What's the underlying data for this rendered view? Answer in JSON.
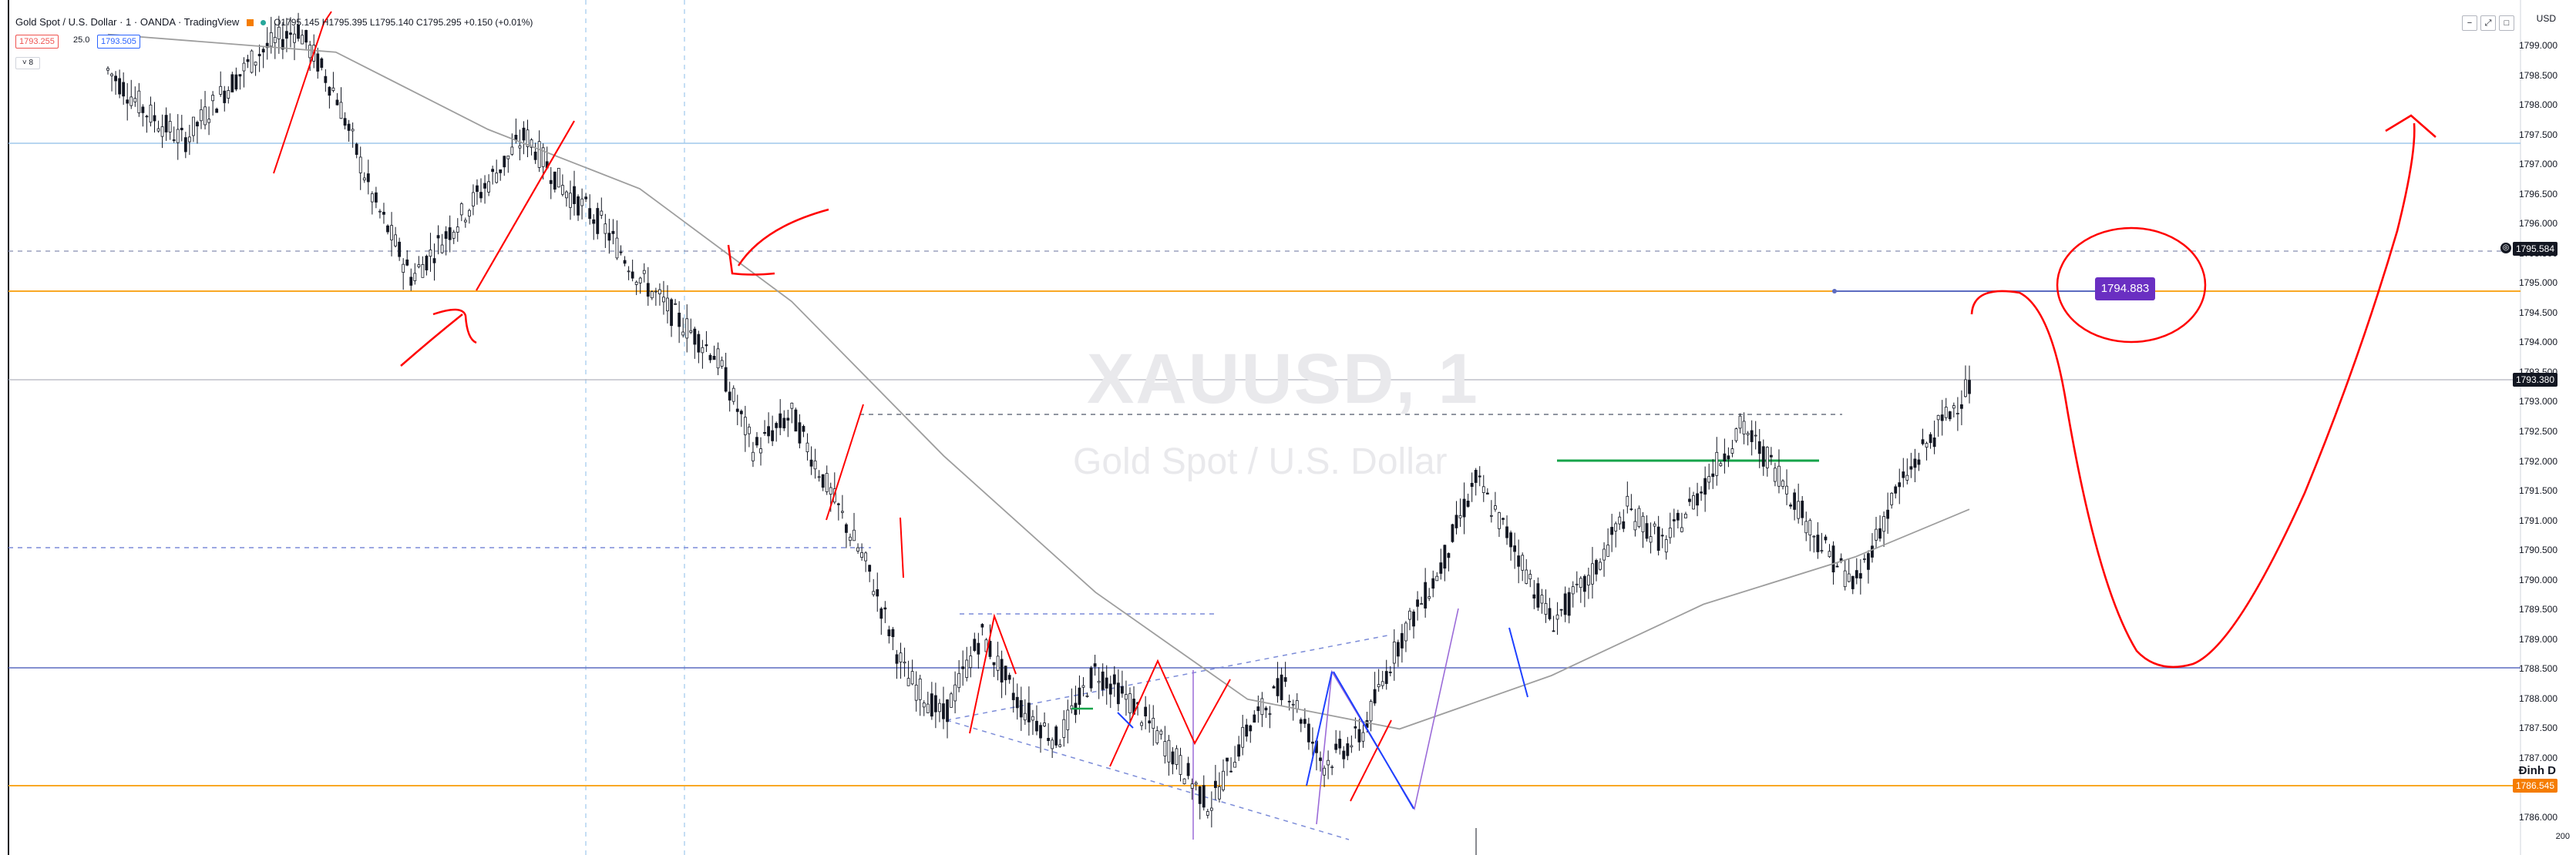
{
  "window": {
    "title": "Gold Spot / U.S. Dollar · 1 · OANDA · TradingView",
    "ohlc": "O1795.145 H1795.395 L1795.140 C1795.295 +0.150 (+0.01%)",
    "sell_price": "1793.255",
    "spread": "25.0",
    "buy_price": "1793.505",
    "indicator_chip": "8",
    "buttons": [
      "−",
      "⤢",
      "□"
    ]
  },
  "watermark": {
    "symbol": "XAUUSD, 1",
    "description": "Gold Spot / U.S. Dollar"
  },
  "price_axis": {
    "currency": "USD",
    "ticks": [
      "1799.000",
      "1798.500",
      "1798.000",
      "1797.500",
      "1797.000",
      "1796.500",
      "1796.000",
      "1795.500",
      "1795.000",
      "1794.500",
      "1794.000",
      "1793.500",
      "1793.000",
      "1792.500",
      "1792.000",
      "1791.500",
      "1791.000",
      "1790.500",
      "1790.000",
      "1789.500",
      "1789.000",
      "1788.500",
      "1788.000",
      "1787.500",
      "1787.000",
      "1786.500",
      "1786.000"
    ],
    "tags": [
      {
        "price": 1795.584,
        "label": "1795.584",
        "color": "#131722"
      },
      {
        "price": 1793.38,
        "label": "1793.380",
        "color": "#131722"
      },
      {
        "price": 1786.545,
        "label": "1786.545",
        "color": "#f57c00"
      }
    ],
    "bottom_label": "200"
  },
  "annotations": {
    "purple_price_label": "1794.883",
    "dinh_label": "Đinh D",
    "target_icon": "crosshair-icon"
  },
  "colors": {
    "up": "#131722",
    "ma": "#9e9e9e",
    "horizontal_orange": "#f9a825",
    "horizontal_blue": "#9fc9ec",
    "horizontal_purple": "#5c6bc0",
    "drawing_red": "#ff0000",
    "pattern_blue": "#1e40ff",
    "pattern_green": "#16a34a",
    "dashed_blue": "#7c8cd8",
    "purple_label_bg": "#6a2fc2"
  },
  "chart_data": {
    "type": "line",
    "title": "XAUUSD, 1",
    "xlabel": "",
    "ylabel": "",
    "ylim": [
      1786.0,
      1799.0
    ],
    "price_path": [
      [
        0,
        1798.6
      ],
      [
        1,
        1797.9
      ],
      [
        2,
        1797.4
      ],
      [
        3,
        1798.2
      ],
      [
        4,
        1798.9
      ],
      [
        5,
        1799.3
      ],
      [
        6,
        1798.2
      ],
      [
        7,
        1796.4
      ],
      [
        8,
        1795.1
      ],
      [
        9,
        1795.9
      ],
      [
        10,
        1796.7
      ],
      [
        11,
        1797.5
      ],
      [
        12,
        1796.6
      ],
      [
        13,
        1796.0
      ],
      [
        14,
        1795.1
      ],
      [
        15,
        1794.4
      ],
      [
        16,
        1793.8
      ],
      [
        17,
        1792.2
      ],
      [
        18,
        1792.8
      ],
      [
        19,
        1791.5
      ],
      [
        20,
        1790.2
      ],
      [
        21,
        1788.4
      ],
      [
        22,
        1787.7
      ],
      [
        23,
        1789.1
      ],
      [
        24,
        1787.9
      ],
      [
        25,
        1787.3
      ],
      [
        26,
        1788.5
      ],
      [
        27,
        1787.9
      ],
      [
        28,
        1787.1
      ],
      [
        29,
        1786.2
      ],
      [
        30,
        1787.5
      ],
      [
        31,
        1788.3
      ],
      [
        32,
        1786.9
      ],
      [
        33,
        1787.4
      ],
      [
        34,
        1789.0
      ],
      [
        35,
        1790.1
      ],
      [
        36,
        1791.7
      ],
      [
        37,
        1790.6
      ],
      [
        38,
        1789.3
      ],
      [
        39,
        1790.0
      ],
      [
        40,
        1791.2
      ],
      [
        41,
        1790.6
      ],
      [
        42,
        1791.6
      ],
      [
        43,
        1792.6
      ],
      [
        44,
        1791.8
      ],
      [
        45,
        1790.7
      ],
      [
        46,
        1789.9
      ],
      [
        47,
        1791.4
      ],
      [
        48,
        1792.4
      ],
      [
        49,
        1793.3
      ]
    ],
    "moving_average": [
      [
        0,
        1799.2
      ],
      [
        6,
        1798.9
      ],
      [
        10,
        1797.6
      ],
      [
        14,
        1796.6
      ],
      [
        18,
        1794.7
      ],
      [
        22,
        1792.1
      ],
      [
        26,
        1789.8
      ],
      [
        30,
        1788.0
      ],
      [
        34,
        1787.5
      ],
      [
        38,
        1788.4
      ],
      [
        42,
        1789.6
      ],
      [
        46,
        1790.4
      ],
      [
        49,
        1791.2
      ]
    ]
  }
}
